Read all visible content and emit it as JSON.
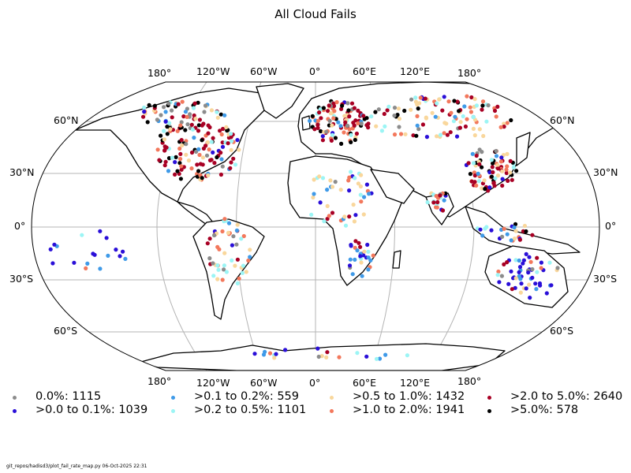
{
  "title": "All Cloud Fails",
  "lon_labels": [
    "180°",
    "120°W",
    "60°W",
    "0°",
    "60°E",
    "120°E",
    "180°"
  ],
  "lat_labels": [
    "60°N",
    "30°N",
    "0°",
    "30°S",
    "60°S"
  ],
  "legend": [
    {
      "label": "0.0%: 1115",
      "color": "#8c8c8c"
    },
    {
      "label": ">0.0 to 0.1%: 1039",
      "color": "#2a0fd8"
    },
    {
      "label": ">0.1 to 0.2%: 559",
      "color": "#3f9ae8"
    },
    {
      "label": ">0.2 to 0.5%: 1101",
      "color": "#9cf5f5"
    },
    {
      "label": ">0.5 to 1.0%: 1432",
      "color": "#f9d79c"
    },
    {
      "label": ">1.0 to 2.0%: 1941",
      "color": "#f3785c"
    },
    {
      "label": ">2.0 to 5.0%: 2640",
      "color": "#a80024"
    },
    {
      "label": ">5.0%: 578",
      "color": "#000000"
    }
  ],
  "footer": "git_repos/hadisd3/plot_fail_rate_map.py   06-Oct-2025 22:31"
}
